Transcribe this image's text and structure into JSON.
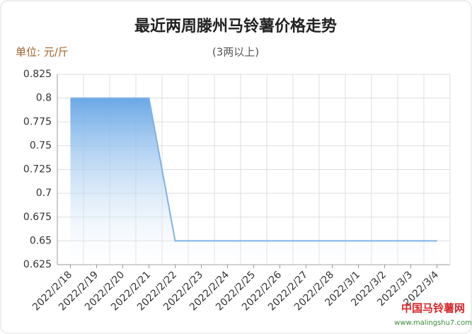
{
  "chart_data": {
    "type": "area",
    "title": "最近两周滕州马铃薯价格走势",
    "unit_label": "单位: 元/斤",
    "subtitle": "(3两以上)",
    "categories": [
      "2022/2/18",
      "2022/2/19",
      "2022/2/20",
      "2022/2/21",
      "2022/2/22",
      "2022/2/23",
      "2022/2/24",
      "2022/2/25",
      "2022/2/26",
      "2022/2/27",
      "2022/2/28",
      "2022/3/1",
      "2022/3/2",
      "2022/3/3",
      "2022/3/4"
    ],
    "values": [
      0.8,
      0.8,
      0.8,
      0.8,
      0.65,
      0.65,
      0.65,
      0.65,
      0.65,
      0.65,
      0.65,
      0.65,
      0.65,
      0.65,
      0.65
    ],
    "color": "#7fb2e5",
    "ylim": [
      0.625,
      0.825
    ],
    "yticks": [
      0.625,
      0.65,
      0.675,
      0.7,
      0.725,
      0.75,
      0.775,
      0.8,
      0.825
    ],
    "grid": true
  },
  "watermark": {
    "name": "中国马铃薯网",
    "url": "www.malingshu7.com"
  }
}
